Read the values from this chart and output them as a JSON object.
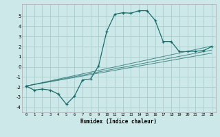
{
  "xlabel": "Humidex (Indice chaleur)",
  "background_color": "#cce8e8",
  "grid_color": "#aacccc",
  "line_color": "#1a6b6b",
  "xlim": [
    -0.5,
    23.5
  ],
  "ylim": [
    -4.5,
    6.2
  ],
  "xticks": [
    0,
    1,
    2,
    3,
    4,
    5,
    6,
    7,
    8,
    9,
    10,
    11,
    12,
    13,
    14,
    15,
    16,
    17,
    18,
    19,
    20,
    21,
    22,
    23
  ],
  "yticks": [
    -4,
    -3,
    -2,
    -1,
    0,
    1,
    2,
    3,
    4,
    5
  ],
  "curve_x": [
    0,
    1,
    2,
    3,
    4,
    5,
    6,
    7,
    8,
    9,
    10,
    11,
    12,
    13,
    14,
    15,
    16,
    17,
    18,
    19,
    20,
    21,
    22,
    23
  ],
  "curve_y": [
    -1.9,
    -2.3,
    -2.2,
    -2.3,
    -2.7,
    -3.7,
    -2.9,
    -1.3,
    -1.2,
    0.1,
    3.5,
    5.2,
    5.35,
    5.3,
    5.55,
    5.55,
    4.6,
    2.5,
    2.5,
    1.5,
    1.5,
    1.55,
    1.6,
    2.0
  ],
  "reg_lines": [
    {
      "x": [
        0,
        23
      ],
      "y": [
        -1.9,
        2.05
      ]
    },
    {
      "x": [
        0,
        23
      ],
      "y": [
        -1.9,
        1.65
      ]
    },
    {
      "x": [
        0,
        23
      ],
      "y": [
        -1.9,
        1.35
      ]
    }
  ]
}
